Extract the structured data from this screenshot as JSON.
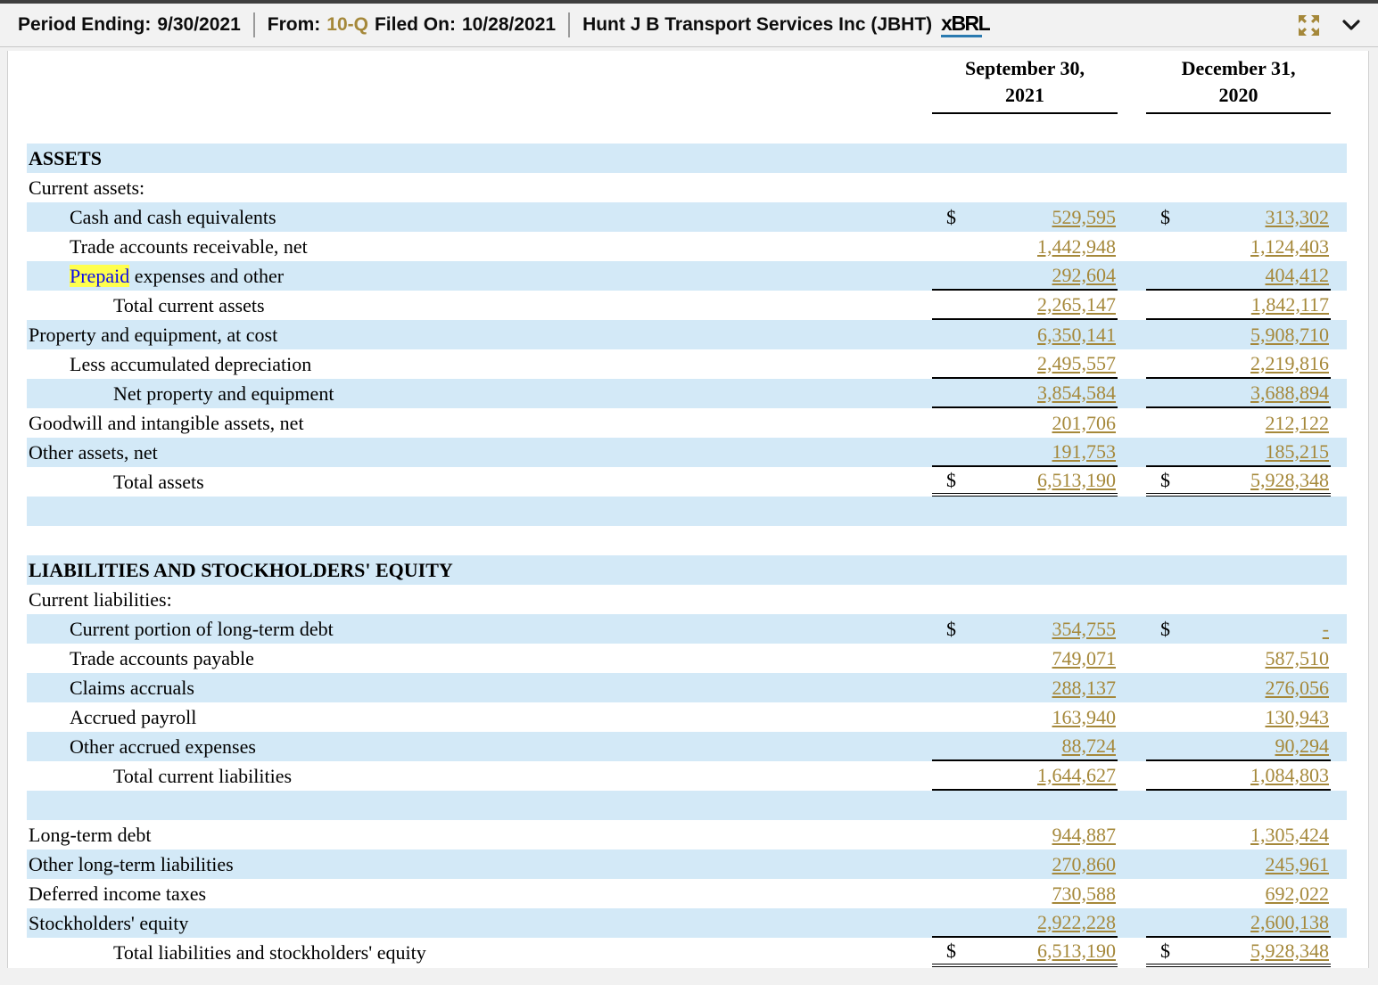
{
  "header": {
    "period_ending_label": "Period Ending:",
    "period_ending_value": "9/30/2021",
    "from_label": "From:",
    "form_type": "10-Q",
    "filed_on_label": "Filed On:",
    "filed_on_value": "10/28/2021",
    "company": "Hunt J B Transport Services Inc (JBHT)",
    "logo_text": "xBRL"
  },
  "colors": {
    "accent_gold": "#a5883a",
    "row_blue": "#d3e9f7",
    "highlight_yellow": "#ffff4d",
    "highlight_text_blue": "#0b0bec"
  },
  "table": {
    "columns": [
      {
        "line1": "September 30,",
        "line2": "2021"
      },
      {
        "line1": "December 31,",
        "line2": "2020"
      }
    ],
    "rows": [
      {
        "label": "ASSETS",
        "indent": 0,
        "shaded": true,
        "bold": true
      },
      {
        "label": "Current assets:",
        "indent": 0
      },
      {
        "label": "Cash and cash equivalents",
        "indent": 1,
        "shaded": true,
        "dollar": true,
        "v1": "529,595",
        "v2": "313,302"
      },
      {
        "label": "Trade accounts receivable, net",
        "indent": 1,
        "v1": "1,442,948",
        "v2": "1,124,403"
      },
      {
        "label_highlight": "Prepaid",
        "label": " expenses and other",
        "indent": 1,
        "shaded": true,
        "v1": "292,604",
        "v2": "404,412",
        "line": "single"
      },
      {
        "label": "Total current assets",
        "indent": 2,
        "v1": "2,265,147",
        "v2": "1,842,117",
        "line": "single"
      },
      {
        "label": "Property and equipment, at cost",
        "indent": 0,
        "shaded": true,
        "v1": "6,350,141",
        "v2": "5,908,710"
      },
      {
        "label": "Less accumulated depreciation",
        "indent": 1,
        "v1": "2,495,557",
        "v2": "2,219,816",
        "line": "single"
      },
      {
        "label": "Net property and equipment",
        "indent": 2,
        "shaded": true,
        "v1": "3,854,584",
        "v2": "3,688,894",
        "line": "single"
      },
      {
        "label": "Goodwill and intangible assets, net",
        "indent": 0,
        "v1": "201,706",
        "v2": "212,122"
      },
      {
        "label": "Other assets, net",
        "indent": 0,
        "shaded": true,
        "v1": "191,753",
        "v2": "185,215",
        "line": "single"
      },
      {
        "label": "Total assets",
        "indent": 2,
        "dollar": true,
        "v1": "6,513,190",
        "v2": "5,928,348",
        "line": "double"
      },
      {
        "spacer": true,
        "shaded": true
      },
      {
        "spacer": true
      },
      {
        "label": "LIABILITIES AND STOCKHOLDERS' EQUITY",
        "indent": 0,
        "shaded": true,
        "bold": true
      },
      {
        "label": "Current liabilities:",
        "indent": 0
      },
      {
        "label": "Current portion of long-term debt",
        "indent": 1,
        "shaded": true,
        "dollar": true,
        "v1": "354,755",
        "v2": "-"
      },
      {
        "label": "Trade accounts payable",
        "indent": 1,
        "v1": "749,071",
        "v2": "587,510"
      },
      {
        "label": "Claims accruals",
        "indent": 1,
        "shaded": true,
        "v1": "288,137",
        "v2": "276,056"
      },
      {
        "label": "Accrued payroll",
        "indent": 1,
        "v1": "163,940",
        "v2": "130,943"
      },
      {
        "label": "Other accrued expenses",
        "indent": 1,
        "shaded": true,
        "v1": "88,724",
        "v2": "90,294",
        "line": "single"
      },
      {
        "label": "Total current liabilities",
        "indent": 2,
        "v1": "1,644,627",
        "v2": "1,084,803",
        "line": "single"
      },
      {
        "spacer": true,
        "shaded": true
      },
      {
        "label": "Long-term debt",
        "indent": 0,
        "v1": "944,887",
        "v2": "1,305,424"
      },
      {
        "label": "Other long-term liabilities",
        "indent": 0,
        "shaded": true,
        "v1": "270,860",
        "v2": "245,961"
      },
      {
        "label": "Deferred income taxes",
        "indent": 0,
        "v1": "730,588",
        "v2": "692,022"
      },
      {
        "label": "Stockholders' equity",
        "indent": 0,
        "shaded": true,
        "v1": "2,922,228",
        "v2": "2,600,138",
        "line": "single"
      },
      {
        "label": "Total liabilities and stockholders' equity",
        "indent": 2,
        "dollar": true,
        "v1": "6,513,190",
        "v2": "5,928,348",
        "line": "double"
      }
    ]
  }
}
